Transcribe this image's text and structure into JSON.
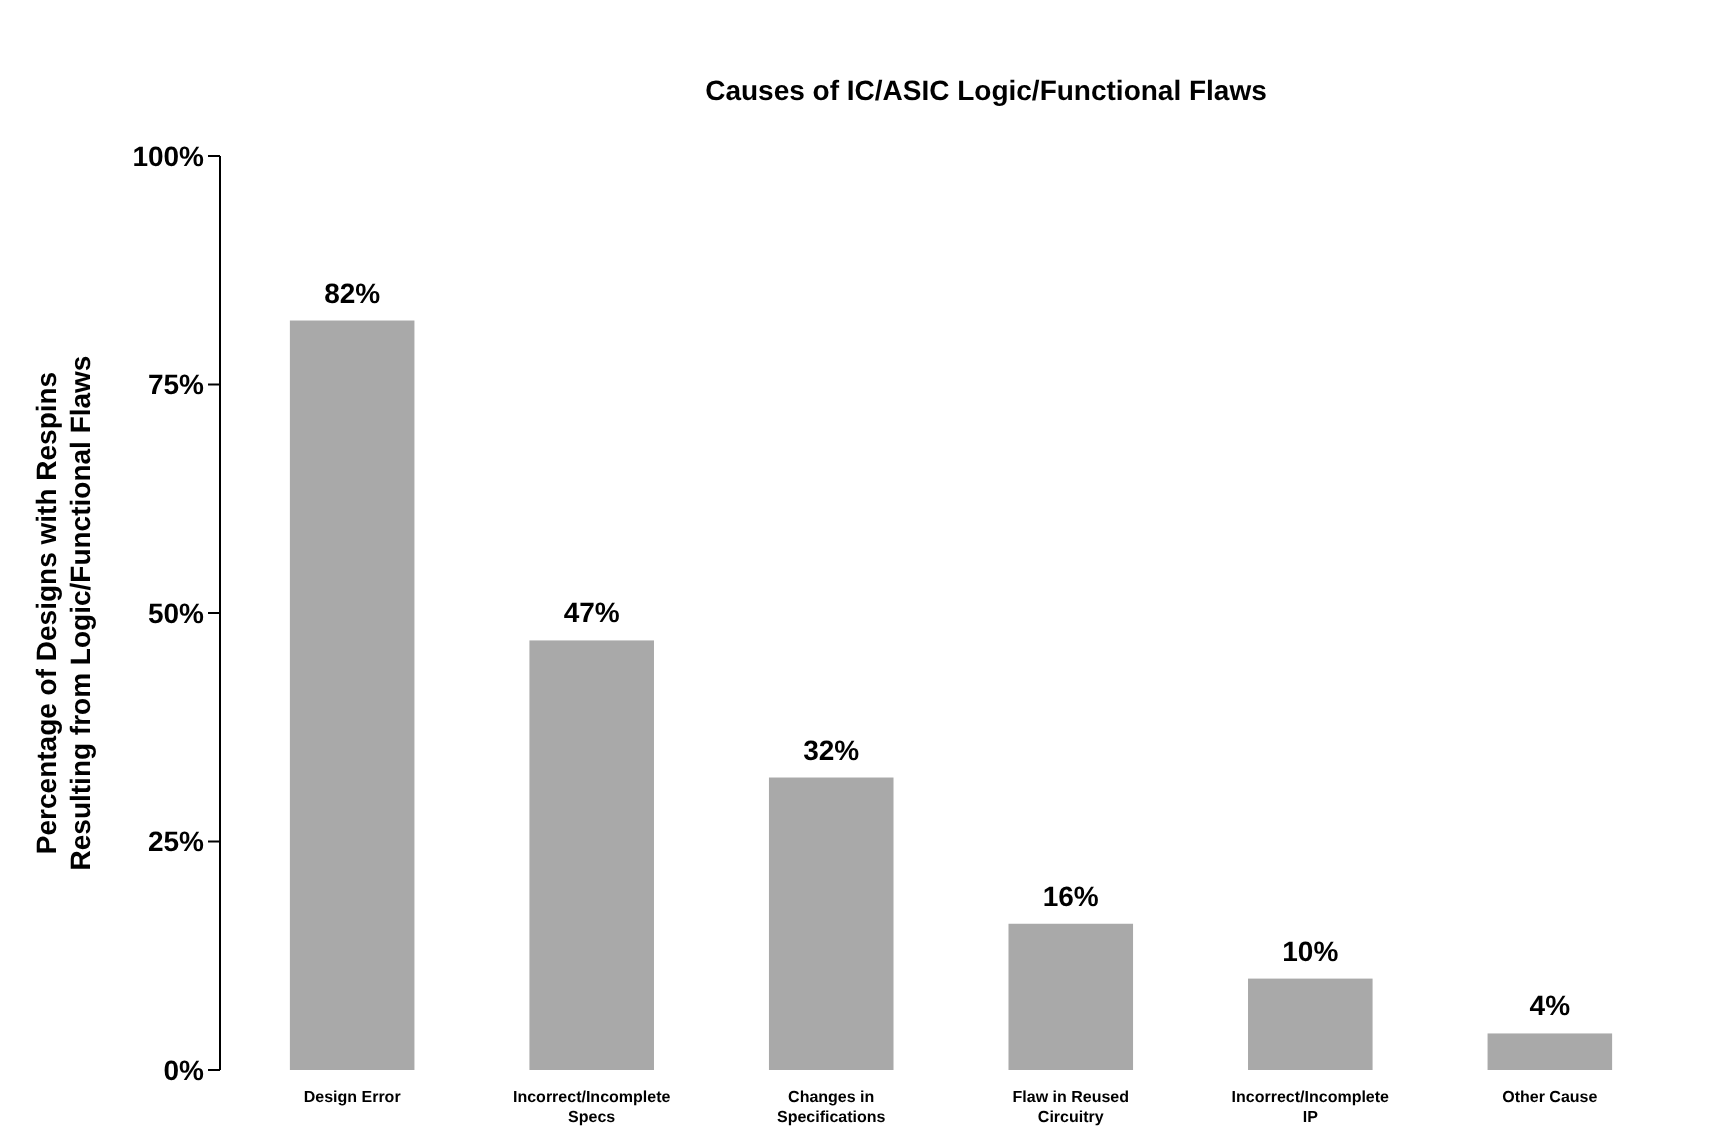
{
  "chart_data": {
    "type": "bar",
    "title": "Causes of IC/ASIC Logic/Functional Flaws",
    "ylabel": "Percentage of Designs with Respins Resulting from Logic/Functional Flaws",
    "categories": [
      "Design Error",
      "Incorrect/Incomplete Specs",
      "Changes in Specifications",
      "Flaw in Reused Circuitry",
      "Incorrect/Incomplete IP",
      "Other Cause"
    ],
    "values": [
      82,
      47,
      32,
      16,
      10,
      4
    ],
    "value_labels": [
      "82%",
      "47%",
      "32%",
      "16%",
      "10%",
      "4%"
    ],
    "color": "#a9a9a9",
    "ylim": [
      0,
      100
    ],
    "yticks": [
      {
        "value": 0,
        "label": "0%"
      },
      {
        "value": 25,
        "label": "25%"
      },
      {
        "value": 50,
        "label": "50%"
      },
      {
        "value": 75,
        "label": "75%"
      },
      {
        "value": 100,
        "label": "100%"
      }
    ],
    "grid": false
  }
}
